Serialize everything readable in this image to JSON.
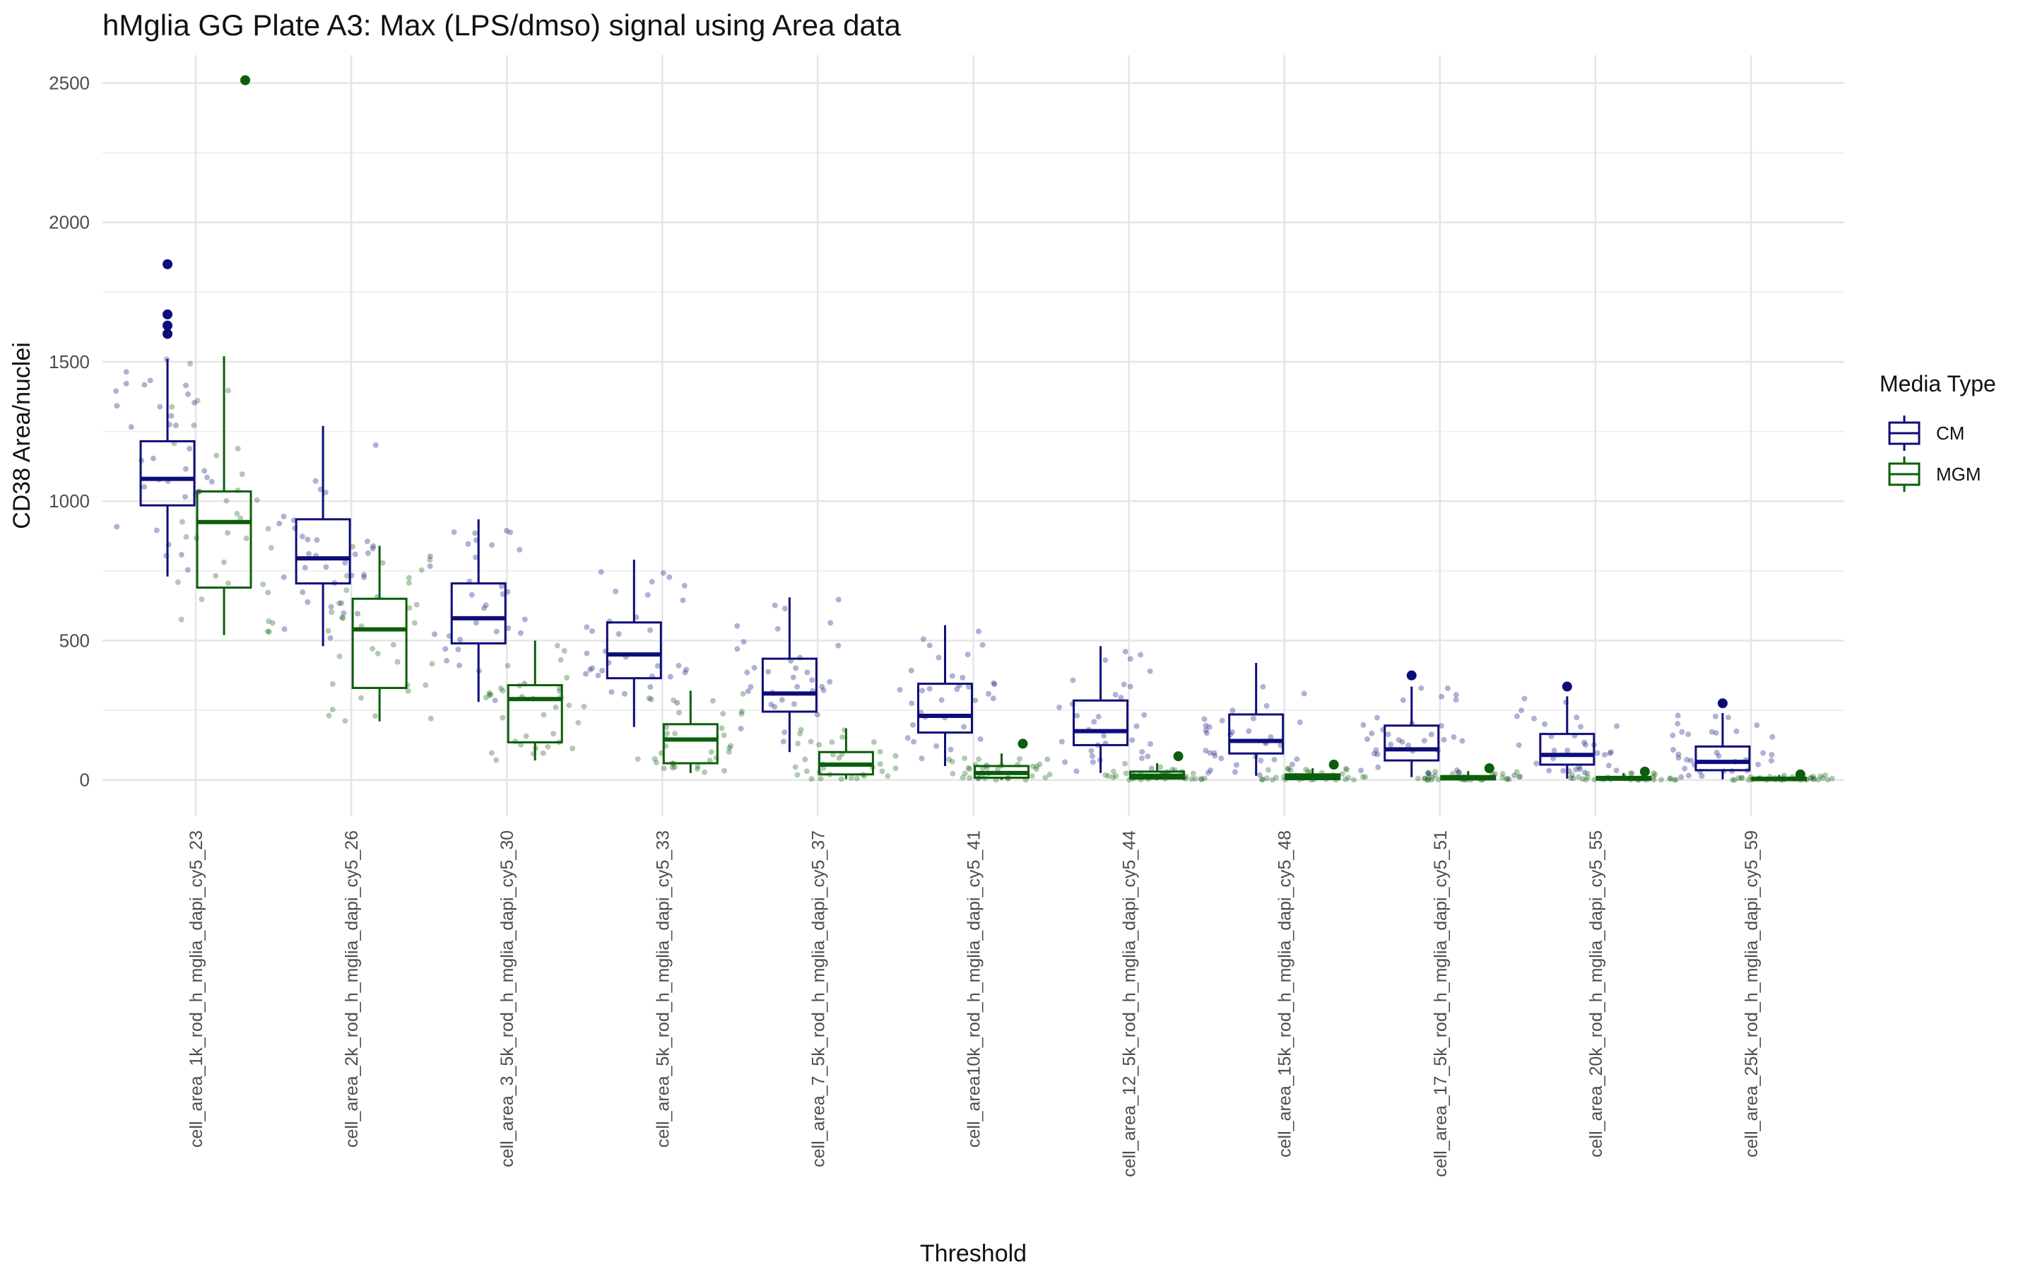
{
  "chart_data": {
    "type": "box",
    "title": "hMglia GG Plate A3: Max (LPS/dmso) signal using Area data",
    "xlabel": "Threshold",
    "ylabel": "CD38 Area/nuclei",
    "ylim": [
      -130,
      2600
    ],
    "yticks": [
      0,
      500,
      1000,
      1500,
      2000,
      2500
    ],
    "grid": true,
    "legend": {
      "title": "Media Type",
      "position": "right"
    },
    "categories": [
      "cell_area_1k_rod_h_mglia_dapi_cy5_23",
      "cell_area_2k_rod_h_mglia_dapi_cy5_26",
      "cell_area_3_5k_rod_h_mglia_dapi_cy5_30",
      "cell_area_5k_rod_h_mglia_dapi_cy5_33",
      "cell_area_7_5k_rod_h_mglia_dapi_cy5_37",
      "cell_area10k_rod_h_mglia_dapi_cy5_41",
      "cell_area_12_5k_rod_h_mglia_dapi_cy5_44",
      "cell_area_15k_rod_h_mglia_dapi_cy5_48",
      "cell_area_17_5k_rod_h_mglia_dapi_cy5_51",
      "cell_area_20k_rod_h_mglia_dapi_cy5_55",
      "cell_area_25k_rod_h_mglia_dapi_cy5_59"
    ],
    "series": [
      {
        "name": "CM",
        "color": "#0d0d7a",
        "boxes": [
          {
            "whisker_low": 730,
            "q1": 985,
            "median": 1080,
            "q3": 1215,
            "whisker_high": 1510,
            "outliers": [
              1850,
              1670,
              1630,
              1600
            ]
          },
          {
            "whisker_low": 480,
            "q1": 705,
            "median": 795,
            "q3": 935,
            "whisker_high": 1270,
            "outliers": []
          },
          {
            "whisker_low": 280,
            "q1": 490,
            "median": 580,
            "q3": 705,
            "whisker_high": 935,
            "outliers": []
          },
          {
            "whisker_low": 190,
            "q1": 365,
            "median": 450,
            "q3": 565,
            "whisker_high": 790,
            "outliers": []
          },
          {
            "whisker_low": 100,
            "q1": 245,
            "median": 310,
            "q3": 435,
            "whisker_high": 655,
            "outliers": []
          },
          {
            "whisker_low": 50,
            "q1": 170,
            "median": 230,
            "q3": 345,
            "whisker_high": 555,
            "outliers": []
          },
          {
            "whisker_low": 25,
            "q1": 125,
            "median": 175,
            "q3": 285,
            "whisker_high": 480,
            "outliers": []
          },
          {
            "whisker_low": 15,
            "q1": 95,
            "median": 140,
            "q3": 235,
            "whisker_high": 420,
            "outliers": []
          },
          {
            "whisker_low": 10,
            "q1": 70,
            "median": 110,
            "q3": 195,
            "whisker_high": 335,
            "outliers": [
              375
            ]
          },
          {
            "whisker_low": 5,
            "q1": 55,
            "median": 90,
            "q3": 165,
            "whisker_high": 300,
            "outliers": [
              335
            ]
          },
          {
            "whisker_low": 2,
            "q1": 35,
            "median": 65,
            "q3": 120,
            "whisker_high": 240,
            "outliers": [
              275
            ]
          }
        ]
      },
      {
        "name": "MGM",
        "color": "#0b5e0b",
        "boxes": [
          {
            "whisker_low": 520,
            "q1": 690,
            "median": 925,
            "q3": 1035,
            "whisker_high": 1520,
            "outliers": [
              2510
            ]
          },
          {
            "whisker_low": 210,
            "q1": 330,
            "median": 540,
            "q3": 650,
            "whisker_high": 840,
            "outliers": []
          },
          {
            "whisker_low": 70,
            "q1": 135,
            "median": 290,
            "q3": 340,
            "whisker_high": 500,
            "outliers": []
          },
          {
            "whisker_low": 25,
            "q1": 60,
            "median": 145,
            "q3": 200,
            "whisker_high": 320,
            "outliers": []
          },
          {
            "whisker_low": 3,
            "q1": 20,
            "median": 55,
            "q3": 100,
            "whisker_high": 185,
            "outliers": []
          },
          {
            "whisker_low": 0,
            "q1": 8,
            "median": 25,
            "q3": 50,
            "whisker_high": 95,
            "outliers": [
              130
            ]
          },
          {
            "whisker_low": 0,
            "q1": 5,
            "median": 15,
            "q3": 30,
            "whisker_high": 60,
            "outliers": [
              85
            ]
          },
          {
            "whisker_low": 0,
            "q1": 3,
            "median": 10,
            "q3": 20,
            "whisker_high": 42,
            "outliers": [
              55
            ]
          },
          {
            "whisker_low": 0,
            "q1": 2,
            "median": 7,
            "q3": 14,
            "whisker_high": 32,
            "outliers": [
              42
            ]
          },
          {
            "whisker_low": 0,
            "q1": 1,
            "median": 5,
            "q3": 11,
            "whisker_high": 25,
            "outliers": [
              30
            ]
          },
          {
            "whisker_low": 0,
            "q1": 0,
            "median": 3,
            "q3": 8,
            "whisker_high": 18,
            "outliers": [
              20
            ]
          }
        ]
      }
    ]
  }
}
